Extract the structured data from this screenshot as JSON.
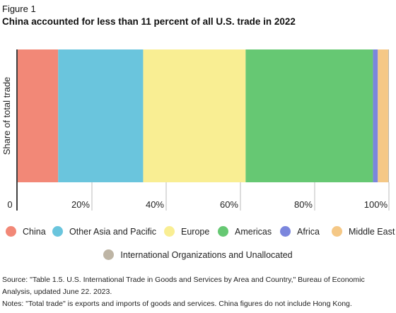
{
  "figure_label": "Figure 1",
  "title": "China accounted for less than 11 percent of all U.S. trade in 2022",
  "chart_data": {
    "type": "bar",
    "orientation": "horizontal-stacked-100",
    "ylabel": "Share of total trade",
    "xlim": [
      0,
      100
    ],
    "ticks": [
      {
        "value": 0,
        "label": "0"
      },
      {
        "value": 20,
        "label": "20%"
      },
      {
        "value": 40,
        "label": "40%"
      },
      {
        "value": 60,
        "label": "60%"
      },
      {
        "value": 80,
        "label": "80%"
      },
      {
        "value": 100,
        "label": "100%"
      }
    ],
    "grid": false,
    "legend_position": "bottom",
    "series": [
      {
        "name": "China",
        "value": 10.9,
        "color": "#f28877"
      },
      {
        "name": "Other Asia and Pacific",
        "value": 22.9,
        "color": "#6ac5dd"
      },
      {
        "name": "Europe",
        "value": 27.6,
        "color": "#f9ee93"
      },
      {
        "name": "Americas",
        "value": 34.3,
        "color": "#66c873"
      },
      {
        "name": "Africa",
        "value": 1.3,
        "color": "#7b86dd"
      },
      {
        "name": "Middle East",
        "value": 2.8,
        "color": "#f5c886"
      },
      {
        "name": "International Organizations and Unallocated",
        "value": 0.2,
        "color": "#beb5a5"
      }
    ]
  },
  "notes": {
    "source": "Source: \"Table 1.5. U.S. International Trade in Goods and Services by Area and Country,\" Bureau of Economic Analysis, updated June 22. 2023.",
    "note": "Notes: \"Total trade\" is exports and imports of goods and services. China figures do not include Hong Kong."
  }
}
